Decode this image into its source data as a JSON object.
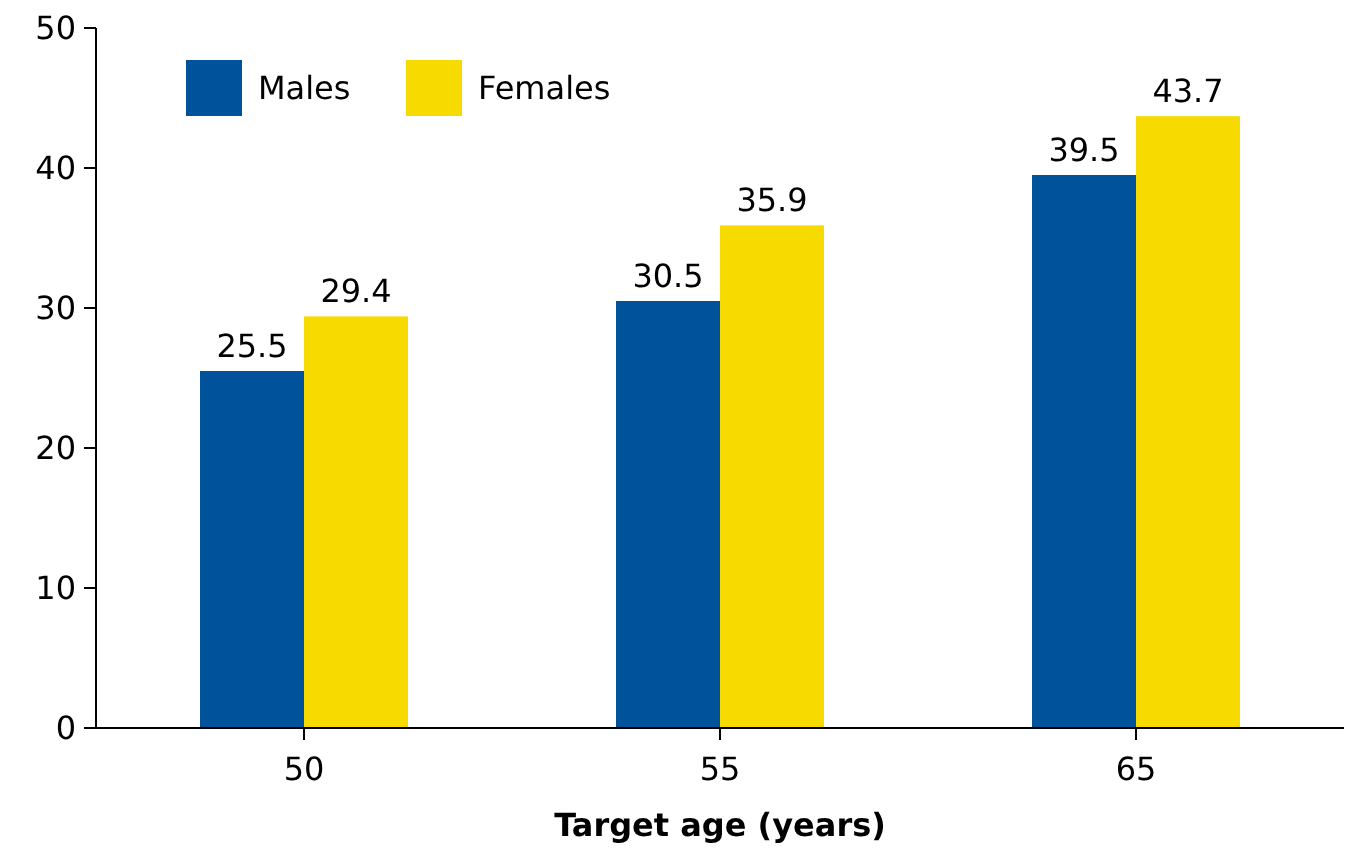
{
  "chart_data": {
    "type": "bar",
    "xlabel": "Target age (years)",
    "categories": [
      "50",
      "55",
      "65"
    ],
    "series": [
      {
        "name": "Males",
        "color": "#00529b",
        "values": [
          25.5,
          30.5,
          39.5
        ]
      },
      {
        "name": "Females",
        "color": "#f7da00",
        "values": [
          29.4,
          35.9,
          43.7
        ]
      }
    ],
    "ylim": [
      0,
      50
    ],
    "yticks": [
      0,
      10,
      20,
      30,
      40,
      50
    ],
    "data_labels": true,
    "legend": "top left",
    "grid": false
  }
}
